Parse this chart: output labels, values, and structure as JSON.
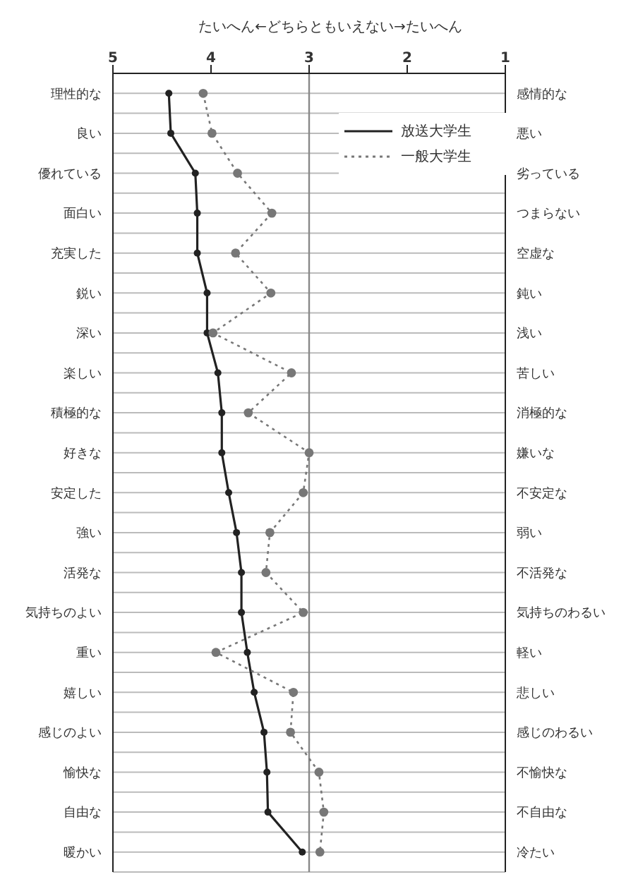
{
  "chart_data": {
    "type": "line",
    "orientation": "horizontal",
    "title": "たいへん←どちらともいえない→たいへん",
    "categories": [
      "理性的な",
      "良い",
      "優れている",
      "面白い",
      "充実した",
      "鋭い",
      "深い",
      "楽しい",
      "積極的な",
      "好きな",
      "安定した",
      "強い",
      "活発な",
      "気持ちのよい",
      "重い",
      "嬉しい",
      "感じのよい",
      "愉快な",
      "自由な",
      "暖かい"
    ],
    "y2_categories": [
      "感情的な",
      "悪い",
      "劣っている",
      "つまらない",
      "空虚な",
      "鈍い",
      "浅い",
      "苦しい",
      "消極的な",
      "嫌いな",
      "不安定な",
      "弱い",
      "不活発な",
      "気持ちのわるい",
      "軽い",
      "悲しい",
      "感じのわるい",
      "不愉快な",
      "不自由な",
      "冷たい"
    ],
    "xlim": [
      5,
      1
    ],
    "xticks": [
      5,
      4,
      3,
      2,
      1
    ],
    "series": [
      {
        "name": "放送大学生",
        "color": "#222222",
        "line_style": "solid",
        "values": [
          4.43,
          4.41,
          4.16,
          4.14,
          4.14,
          4.04,
          4.04,
          3.93,
          3.89,
          3.89,
          3.82,
          3.74,
          3.69,
          3.69,
          3.63,
          3.56,
          3.46,
          3.43,
          3.42,
          3.07
        ]
      },
      {
        "name": "一般大学生",
        "color": "#777777",
        "line_style": "dotted",
        "values": [
          4.08,
          3.99,
          3.73,
          3.38,
          3.75,
          3.39,
          3.98,
          3.18,
          3.62,
          3.0,
          3.06,
          3.4,
          3.44,
          3.06,
          3.95,
          3.16,
          3.19,
          2.9,
          2.85,
          2.89
        ]
      }
    ],
    "ref_lines": [
      {
        "axis": "x",
        "value": 3,
        "color": "#888888"
      }
    ],
    "grid": "y",
    "marker": "circle",
    "legend": "top right"
  }
}
